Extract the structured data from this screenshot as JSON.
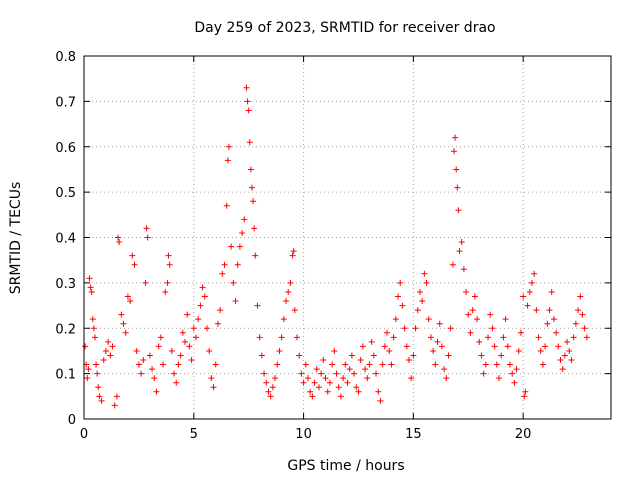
{
  "chart_data": {
    "type": "scatter",
    "title": "Day 259 of 2023, SRMTID for receiver drao",
    "xlabel": "GPS time / hours",
    "ylabel": "SRMTID / TECUs",
    "xlim": [
      0,
      24
    ],
    "ylim": [
      0,
      0.8
    ],
    "xticks": [
      0,
      5,
      10,
      15,
      20
    ],
    "xtick_labels": [
      "0",
      "5",
      "10",
      "15",
      "20"
    ],
    "yticks": [
      0,
      0.1,
      0.2,
      0.3,
      0.4,
      0.5,
      0.6,
      0.7,
      0.8
    ],
    "ytick_labels": [
      "0",
      "0.1",
      "0.2",
      "0.3",
      "0.4",
      "0.5",
      "0.6",
      "0.7",
      "0.8"
    ],
    "grid": true,
    "marker": "+",
    "marker_color": "#ff0000",
    "series": [
      {
        "name": "SRMTID",
        "points": [
          [
            0.05,
            0.16
          ],
          [
            0.1,
            0.12
          ],
          [
            0.15,
            0.09
          ],
          [
            0.2,
            0.11
          ],
          [
            0.25,
            0.31
          ],
          [
            0.3,
            0.29
          ],
          [
            0.35,
            0.28
          ],
          [
            0.4,
            0.22
          ],
          [
            0.45,
            0.2
          ],
          [
            0.5,
            0.18
          ],
          [
            0.55,
            0.12
          ],
          [
            0.6,
            0.1
          ],
          [
            0.65,
            0.07
          ],
          [
            0.7,
            0.05
          ],
          [
            0.8,
            0.04
          ],
          [
            0.9,
            0.13
          ],
          [
            1.0,
            0.15
          ],
          [
            1.1,
            0.17
          ],
          [
            1.2,
            0.14
          ],
          [
            1.3,
            0.16
          ],
          [
            1.4,
            0.03
          ],
          [
            1.5,
            0.05
          ],
          [
            1.55,
            0.4
          ],
          [
            1.6,
            0.39
          ],
          [
            1.7,
            0.23
          ],
          [
            1.8,
            0.21
          ],
          [
            1.9,
            0.19
          ],
          [
            2.0,
            0.27
          ],
          [
            2.1,
            0.26
          ],
          [
            2.2,
            0.36
          ],
          [
            2.3,
            0.34
          ],
          [
            2.4,
            0.15
          ],
          [
            2.5,
            0.12
          ],
          [
            2.6,
            0.1
          ],
          [
            2.7,
            0.13
          ],
          [
            2.8,
            0.3
          ],
          [
            2.85,
            0.42
          ],
          [
            2.9,
            0.4
          ],
          [
            3.0,
            0.14
          ],
          [
            3.1,
            0.11
          ],
          [
            3.2,
            0.09
          ],
          [
            3.3,
            0.06
          ],
          [
            3.4,
            0.16
          ],
          [
            3.5,
            0.18
          ],
          [
            3.6,
            0.12
          ],
          [
            3.7,
            0.28
          ],
          [
            3.8,
            0.3
          ],
          [
            3.85,
            0.36
          ],
          [
            3.9,
            0.34
          ],
          [
            4.0,
            0.15
          ],
          [
            4.1,
            0.1
          ],
          [
            4.2,
            0.08
          ],
          [
            4.3,
            0.12
          ],
          [
            4.4,
            0.14
          ],
          [
            4.5,
            0.19
          ],
          [
            4.6,
            0.17
          ],
          [
            4.7,
            0.23
          ],
          [
            4.8,
            0.16
          ],
          [
            4.9,
            0.13
          ],
          [
            5.0,
            0.2
          ],
          [
            5.1,
            0.18
          ],
          [
            5.2,
            0.22
          ],
          [
            5.3,
            0.25
          ],
          [
            5.4,
            0.29
          ],
          [
            5.5,
            0.27
          ],
          [
            5.6,
            0.2
          ],
          [
            5.7,
            0.15
          ],
          [
            5.8,
            0.09
          ],
          [
            5.9,
            0.07
          ],
          [
            6.0,
            0.12
          ],
          [
            6.1,
            0.21
          ],
          [
            6.2,
            0.24
          ],
          [
            6.3,
            0.32
          ],
          [
            6.4,
            0.34
          ],
          [
            6.5,
            0.47
          ],
          [
            6.55,
            0.57
          ],
          [
            6.6,
            0.6
          ],
          [
            6.7,
            0.38
          ],
          [
            6.8,
            0.3
          ],
          [
            6.9,
            0.26
          ],
          [
            7.0,
            0.34
          ],
          [
            7.1,
            0.38
          ],
          [
            7.2,
            0.41
          ],
          [
            7.3,
            0.44
          ],
          [
            7.4,
            0.73
          ],
          [
            7.45,
            0.7
          ],
          [
            7.5,
            0.68
          ],
          [
            7.55,
            0.61
          ],
          [
            7.6,
            0.55
          ],
          [
            7.65,
            0.51
          ],
          [
            7.7,
            0.48
          ],
          [
            7.75,
            0.42
          ],
          [
            7.8,
            0.36
          ],
          [
            7.9,
            0.25
          ],
          [
            8.0,
            0.18
          ],
          [
            8.1,
            0.14
          ],
          [
            8.2,
            0.1
          ],
          [
            8.3,
            0.08
          ],
          [
            8.4,
            0.06
          ],
          [
            8.5,
            0.05
          ],
          [
            8.6,
            0.07
          ],
          [
            8.7,
            0.09
          ],
          [
            8.8,
            0.12
          ],
          [
            8.9,
            0.15
          ],
          [
            9.0,
            0.18
          ],
          [
            9.1,
            0.22
          ],
          [
            9.2,
            0.26
          ],
          [
            9.3,
            0.28
          ],
          [
            9.4,
            0.3
          ],
          [
            9.5,
            0.36
          ],
          [
            9.55,
            0.37
          ],
          [
            9.6,
            0.24
          ],
          [
            9.7,
            0.18
          ],
          [
            9.8,
            0.14
          ],
          [
            9.9,
            0.1
          ],
          [
            10.0,
            0.08
          ],
          [
            10.1,
            0.12
          ],
          [
            10.2,
            0.09
          ],
          [
            10.3,
            0.06
          ],
          [
            10.4,
            0.05
          ],
          [
            10.5,
            0.08
          ],
          [
            10.6,
            0.11
          ],
          [
            10.7,
            0.07
          ],
          [
            10.8,
            0.1
          ],
          [
            10.9,
            0.13
          ],
          [
            11.0,
            0.09
          ],
          [
            11.1,
            0.06
          ],
          [
            11.2,
            0.08
          ],
          [
            11.3,
            0.12
          ],
          [
            11.4,
            0.15
          ],
          [
            11.5,
            0.1
          ],
          [
            11.6,
            0.07
          ],
          [
            11.7,
            0.05
          ],
          [
            11.8,
            0.09
          ],
          [
            11.9,
            0.12
          ],
          [
            12.0,
            0.08
          ],
          [
            12.1,
            0.11
          ],
          [
            12.2,
            0.14
          ],
          [
            12.3,
            0.1
          ],
          [
            12.4,
            0.07
          ],
          [
            12.5,
            0.06
          ],
          [
            12.6,
            0.13
          ],
          [
            12.7,
            0.16
          ],
          [
            12.8,
            0.11
          ],
          [
            12.9,
            0.09
          ],
          [
            13.0,
            0.12
          ],
          [
            13.1,
            0.17
          ],
          [
            13.2,
            0.14
          ],
          [
            13.3,
            0.1
          ],
          [
            13.4,
            0.06
          ],
          [
            13.5,
            0.04
          ],
          [
            13.6,
            0.12
          ],
          [
            13.7,
            0.16
          ],
          [
            13.8,
            0.19
          ],
          [
            13.9,
            0.15
          ],
          [
            14.0,
            0.12
          ],
          [
            14.1,
            0.18
          ],
          [
            14.2,
            0.22
          ],
          [
            14.3,
            0.27
          ],
          [
            14.4,
            0.3
          ],
          [
            14.5,
            0.25
          ],
          [
            14.6,
            0.2
          ],
          [
            14.7,
            0.16
          ],
          [
            14.8,
            0.13
          ],
          [
            14.9,
            0.09
          ],
          [
            15.0,
            0.14
          ],
          [
            15.1,
            0.2
          ],
          [
            15.2,
            0.24
          ],
          [
            15.3,
            0.28
          ],
          [
            15.4,
            0.26
          ],
          [
            15.5,
            0.32
          ],
          [
            15.6,
            0.3
          ],
          [
            15.7,
            0.22
          ],
          [
            15.8,
            0.18
          ],
          [
            15.9,
            0.15
          ],
          [
            16.0,
            0.12
          ],
          [
            16.1,
            0.17
          ],
          [
            16.2,
            0.21
          ],
          [
            16.3,
            0.16
          ],
          [
            16.4,
            0.11
          ],
          [
            16.5,
            0.09
          ],
          [
            16.6,
            0.14
          ],
          [
            16.7,
            0.2
          ],
          [
            16.8,
            0.34
          ],
          [
            16.85,
            0.59
          ],
          [
            16.9,
            0.62
          ],
          [
            16.95,
            0.55
          ],
          [
            17.0,
            0.51
          ],
          [
            17.05,
            0.46
          ],
          [
            17.1,
            0.37
          ],
          [
            17.2,
            0.39
          ],
          [
            17.3,
            0.33
          ],
          [
            17.4,
            0.28
          ],
          [
            17.5,
            0.23
          ],
          [
            17.6,
            0.19
          ],
          [
            17.7,
            0.24
          ],
          [
            17.8,
            0.27
          ],
          [
            17.9,
            0.22
          ],
          [
            18.0,
            0.17
          ],
          [
            18.1,
            0.14
          ],
          [
            18.2,
            0.1
          ],
          [
            18.3,
            0.12
          ],
          [
            18.4,
            0.18
          ],
          [
            18.5,
            0.23
          ],
          [
            18.6,
            0.2
          ],
          [
            18.7,
            0.16
          ],
          [
            18.8,
            0.12
          ],
          [
            18.9,
            0.09
          ],
          [
            19.0,
            0.14
          ],
          [
            19.1,
            0.18
          ],
          [
            19.2,
            0.22
          ],
          [
            19.3,
            0.16
          ],
          [
            19.4,
            0.12
          ],
          [
            19.5,
            0.1
          ],
          [
            19.6,
            0.08
          ],
          [
            19.7,
            0.11
          ],
          [
            19.8,
            0.15
          ],
          [
            19.9,
            0.19
          ],
          [
            20.0,
            0.27
          ],
          [
            20.05,
            0.05
          ],
          [
            20.1,
            0.06
          ],
          [
            20.2,
            0.25
          ],
          [
            20.3,
            0.28
          ],
          [
            20.4,
            0.3
          ],
          [
            20.5,
            0.32
          ],
          [
            20.6,
            0.24
          ],
          [
            20.7,
            0.18
          ],
          [
            20.8,
            0.15
          ],
          [
            20.9,
            0.12
          ],
          [
            21.0,
            0.16
          ],
          [
            21.1,
            0.21
          ],
          [
            21.2,
            0.24
          ],
          [
            21.3,
            0.28
          ],
          [
            21.4,
            0.22
          ],
          [
            21.5,
            0.19
          ],
          [
            21.6,
            0.16
          ],
          [
            21.7,
            0.13
          ],
          [
            21.8,
            0.11
          ],
          [
            21.9,
            0.14
          ],
          [
            22.0,
            0.17
          ],
          [
            22.1,
            0.15
          ],
          [
            22.2,
            0.13
          ],
          [
            22.3,
            0.18
          ],
          [
            22.4,
            0.21
          ],
          [
            22.5,
            0.24
          ],
          [
            22.6,
            0.27
          ],
          [
            22.7,
            0.23
          ],
          [
            22.8,
            0.2
          ],
          [
            22.9,
            0.18
          ]
        ]
      }
    ]
  }
}
